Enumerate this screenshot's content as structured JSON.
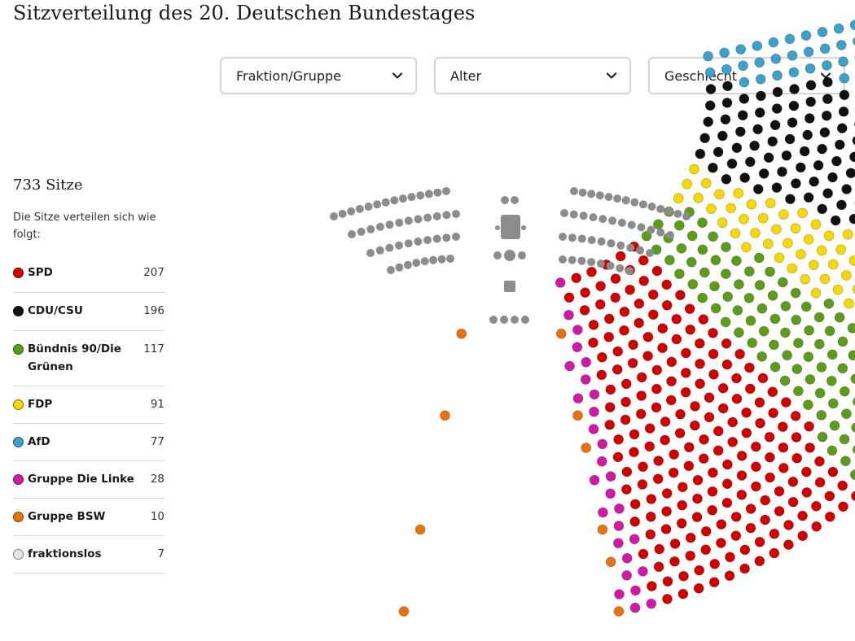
{
  "page": {
    "title": "Sitzverteilung des 20. Deutschen Bundestages"
  },
  "filters": [
    {
      "label": "Fraktion/Gruppe",
      "icon": "chevron-down-icon"
    },
    {
      "label": "Alter",
      "icon": "chevron-down-icon"
    },
    {
      "label": "Geschlecht",
      "icon": "chevron-down-icon"
    }
  ],
  "summary": {
    "total_label": "733 Sitze",
    "description": "Die Sitze verteilen sich wie folgt:"
  },
  "chart_data": {
    "type": "parliament",
    "total_seats": 733,
    "parties": [
      {
        "name": "SPD",
        "seats": 207,
        "color": "#d10000"
      },
      {
        "name": "CDU/CSU",
        "seats": 196,
        "color": "#111111"
      },
      {
        "name": "Bündnis 90/Die Grünen",
        "seats": 117,
        "color": "#5c9c1a"
      },
      {
        "name": "FDP",
        "seats": 91,
        "color": "#f5d800"
      },
      {
        "name": "AfD",
        "seats": 77,
        "color": "#3ea0c8"
      },
      {
        "name": "Gruppe Die Linke",
        "seats": 28,
        "color": "#cf1aa6"
      },
      {
        "name": "Gruppe BSW",
        "seats": 10,
        "color": "#e8720c"
      },
      {
        "name": "fraktionslos",
        "seats": 7,
        "color": "#e6e6e6"
      }
    ]
  }
}
